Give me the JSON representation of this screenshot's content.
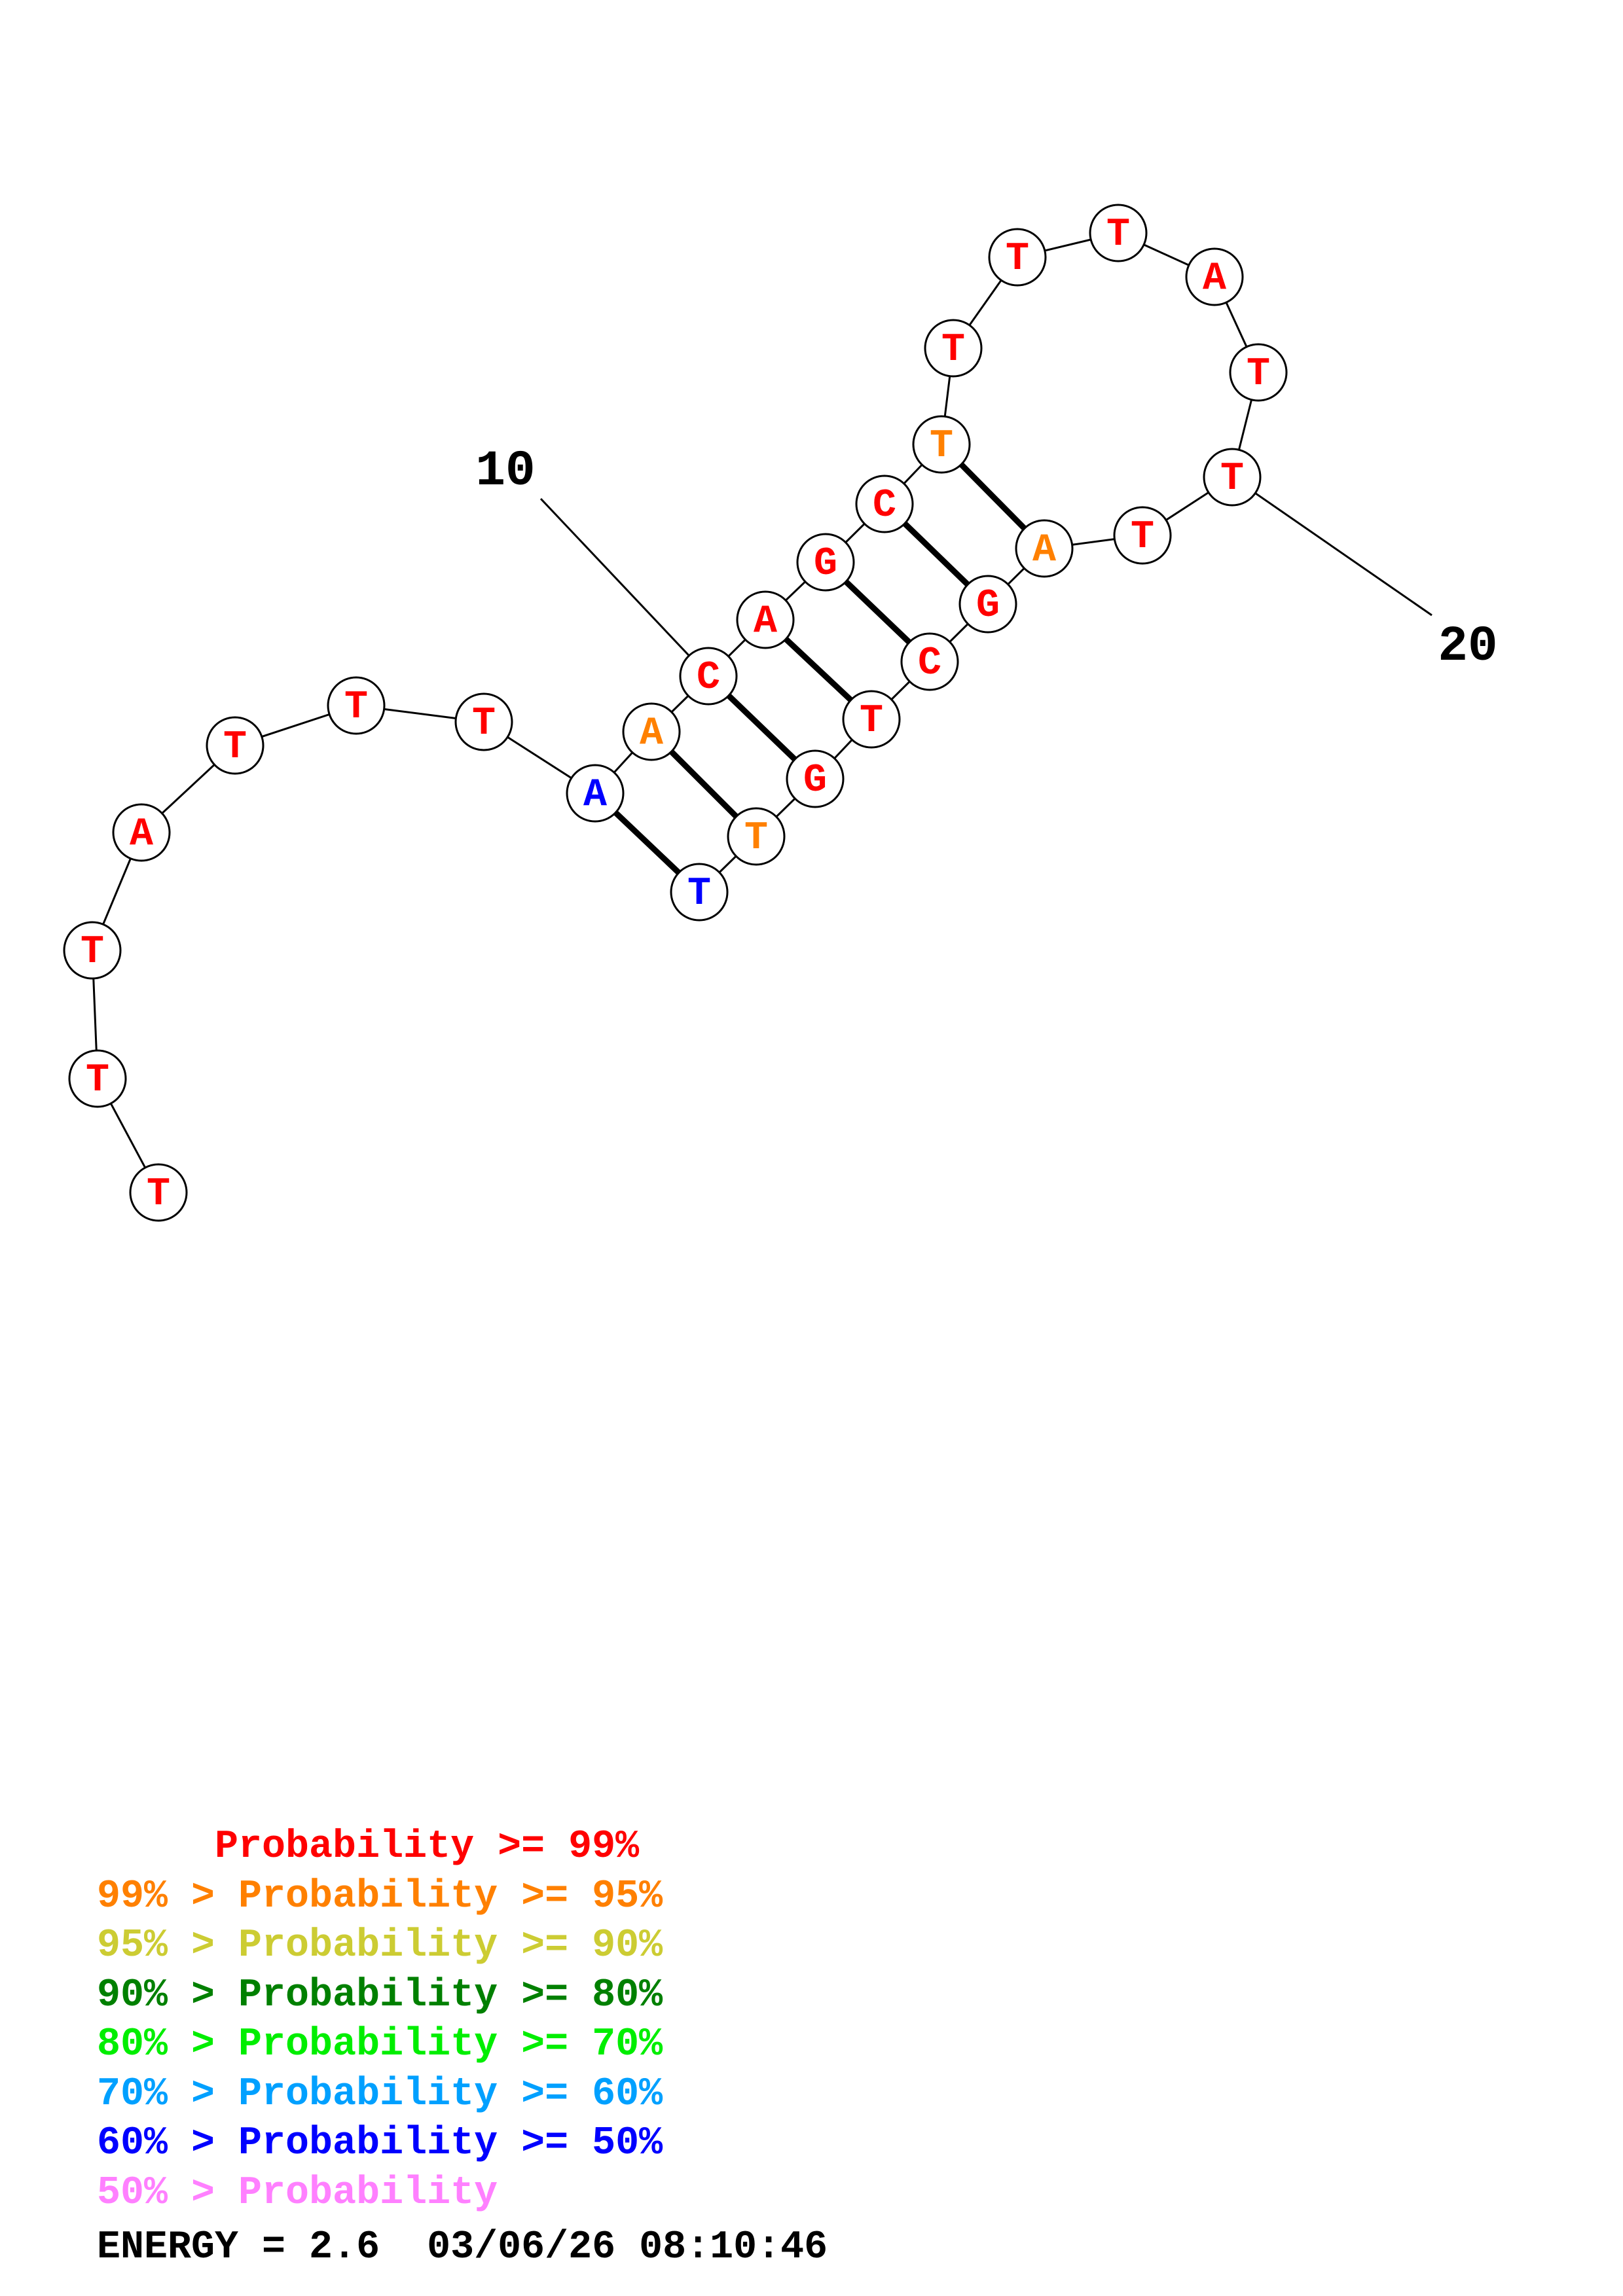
{
  "diagram": {
    "type": "RNA secondary structure",
    "colors": {
      "p99": "#ff0000",
      "p95": "#ff8000",
      "p90": "#cccc33",
      "p80": "#008000",
      "p70": "#00ee00",
      "p60": "#00a0ff",
      "p50": "#0000ff",
      "plow": "#ff80ff",
      "line": "#000000",
      "node_fill": "#ffffff"
    },
    "nucleotides": [
      {
        "index": 1,
        "base": "T",
        "prob_class": "p99"
      },
      {
        "index": 2,
        "base": "T",
        "prob_class": "p99"
      },
      {
        "index": 3,
        "base": "T",
        "prob_class": "p99"
      },
      {
        "index": 4,
        "base": "A",
        "prob_class": "p99"
      },
      {
        "index": 5,
        "base": "T",
        "prob_class": "p99"
      },
      {
        "index": 6,
        "base": "T",
        "prob_class": "p99"
      },
      {
        "index": 7,
        "base": "T",
        "prob_class": "p99"
      },
      {
        "index": 8,
        "base": "A",
        "prob_class": "p50"
      },
      {
        "index": 9,
        "base": "A",
        "prob_class": "p95"
      },
      {
        "index": 10,
        "base": "C",
        "prob_class": "p99"
      },
      {
        "index": 11,
        "base": "A",
        "prob_class": "p99"
      },
      {
        "index": 12,
        "base": "G",
        "prob_class": "p99"
      },
      {
        "index": 13,
        "base": "C",
        "prob_class": "p99"
      },
      {
        "index": 14,
        "base": "T",
        "prob_class": "p95"
      },
      {
        "index": 15,
        "base": "T",
        "prob_class": "p99"
      },
      {
        "index": 16,
        "base": "T",
        "prob_class": "p99"
      },
      {
        "index": 17,
        "base": "T",
        "prob_class": "p99"
      },
      {
        "index": 18,
        "base": "A",
        "prob_class": "p99"
      },
      {
        "index": 19,
        "base": "T",
        "prob_class": "p99"
      },
      {
        "index": 20,
        "base": "T",
        "prob_class": "p99"
      },
      {
        "index": 21,
        "base": "T",
        "prob_class": "p99"
      },
      {
        "index": 22,
        "base": "A",
        "prob_class": "p95"
      },
      {
        "index": 23,
        "base": "G",
        "prob_class": "p99"
      },
      {
        "index": 24,
        "base": "C",
        "prob_class": "p99"
      },
      {
        "index": 25,
        "base": "T",
        "prob_class": "p99"
      },
      {
        "index": 26,
        "base": "G",
        "prob_class": "p99"
      },
      {
        "index": 27,
        "base": "T",
        "prob_class": "p95"
      },
      {
        "index": 28,
        "base": "T",
        "prob_class": "p50"
      }
    ],
    "pairs": [
      [
        8,
        28
      ],
      [
        9,
        27
      ],
      [
        10,
        26
      ],
      [
        11,
        25
      ],
      [
        12,
        24
      ],
      [
        13,
        23
      ],
      [
        14,
        22
      ]
    ],
    "position_labels": [
      {
        "text": "10",
        "index": 10
      },
      {
        "text": "20",
        "index": 20
      }
    ]
  },
  "legend": [
    {
      "text": "     Probability >= 99%",
      "prob_class": "p99"
    },
    {
      "text": "99% > Probability >= 95%",
      "prob_class": "p95"
    },
    {
      "text": "95% > Probability >= 90%",
      "prob_class": "p90"
    },
    {
      "text": "90% > Probability >= 80%",
      "prob_class": "p80"
    },
    {
      "text": "80% > Probability >= 70%",
      "prob_class": "p70"
    },
    {
      "text": "70% > Probability >= 60%",
      "prob_class": "p60"
    },
    {
      "text": "60% > Probability >= 50%",
      "prob_class": "p50"
    },
    {
      "text": "50% > Probability",
      "prob_class": "plow"
    }
  ],
  "energy_line": "ENERGY = 2.6  03/06/26 08:10:46"
}
